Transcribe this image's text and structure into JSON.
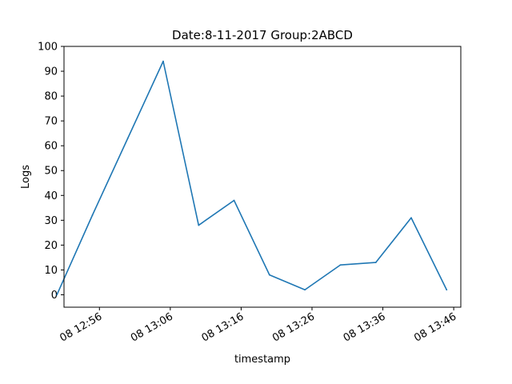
{
  "chart_data": {
    "type": "line",
    "title": "Date:8-11-2017  Group:2ABCD",
    "xlabel": "timestamp",
    "ylabel": "Logs",
    "ylim": [
      -5,
      100
    ],
    "xlim": [
      "08 12:51",
      "08 13:47"
    ],
    "yticks": [
      0,
      10,
      20,
      30,
      40,
      50,
      60,
      70,
      80,
      90,
      100
    ],
    "xticks": [
      "08 12:56",
      "08 13:06",
      "08 13:16",
      "08 13:26",
      "08 13:36",
      "08 13:46"
    ],
    "grid": false,
    "x": [
      "08 12:50",
      "08 12:55",
      "08 13:00",
      "08 13:05",
      "08 13:10",
      "08 13:15",
      "08 13:20",
      "08 13:25",
      "08 13:30",
      "08 13:35",
      "08 13:40",
      "08 13:45"
    ],
    "series": [
      {
        "color": "#1f77b4",
        "values": [
          0,
          32,
          63,
          94,
          28,
          38,
          8,
          2,
          12,
          13,
          31,
          2
        ]
      }
    ]
  }
}
